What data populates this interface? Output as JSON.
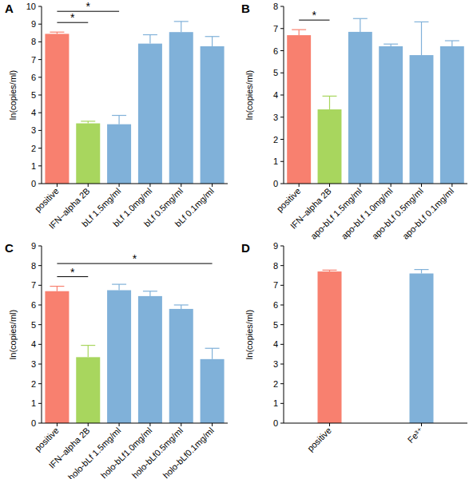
{
  "chart_data": [
    {
      "type": "bar",
      "title": "A",
      "y_label": "ln(copies/ml)",
      "categories": [
        "positive",
        "IFN–alpha 2B",
        "bLf 1.5mg/ml",
        "bLf 1.0mg/ml",
        "bLf 0.5mg/ml",
        "bLf 0.1mg/ml"
      ],
      "values": [
        8.45,
        3.4,
        3.35,
        7.9,
        8.55,
        7.75
      ],
      "errors": [
        0.1,
        0.12,
        0.5,
        0.5,
        0.6,
        0.55
      ],
      "colors": [
        "#f8806f",
        "#a8d65e",
        "#80b1d9",
        "#80b1d9",
        "#80b1d9",
        "#80b1d9"
      ],
      "ylim": [
        0,
        10
      ],
      "yticks": [
        0,
        1,
        2,
        3,
        4,
        5,
        6,
        7,
        8,
        9,
        10
      ],
      "annotations": [
        {
          "text": "*",
          "between": [
            "positive",
            "IFN–alpha 2B"
          ]
        },
        {
          "text": "*",
          "between": [
            "positive",
            "bLf 1.5mg/ml"
          ]
        }
      ]
    },
    {
      "type": "bar",
      "title": "B",
      "y_label": "ln(copies/ml)",
      "categories": [
        "positive",
        "IFN–alpha 2B",
        "apo-bLf 1.5mg/ml",
        "apo-bLf 1.0mg/ml",
        "apo-bLf 0.5mg/ml",
        "apo-bLf 0.1mg/ml"
      ],
      "values": [
        6.7,
        3.35,
        6.85,
        6.2,
        5.8,
        6.2
      ],
      "errors": [
        0.25,
        0.6,
        0.6,
        0.1,
        1.5,
        0.25
      ],
      "colors": [
        "#f8806f",
        "#a8d65e",
        "#80b1d9",
        "#80b1d9",
        "#80b1d9",
        "#80b1d9"
      ],
      "ylim": [
        0,
        8
      ],
      "yticks": [
        0,
        1,
        2,
        3,
        4,
        5,
        6,
        7,
        8
      ],
      "annotations": [
        {
          "text": "*",
          "between": [
            "positive",
            "IFN–alpha 2B"
          ]
        }
      ]
    },
    {
      "type": "bar",
      "title": "C",
      "y_label": "ln(copies/ml)",
      "categories": [
        "positive",
        "IFN–alpha 2B",
        "holo-bLf 1.5mg/ml",
        "holo-bLf1.0mg/ml",
        "holo-bLf0.5mg/ml",
        "holo-bLf0.1mg/ml"
      ],
      "values": [
        6.7,
        3.35,
        6.75,
        6.45,
        5.8,
        3.25
      ],
      "errors": [
        0.25,
        0.6,
        0.3,
        0.25,
        0.2,
        0.55
      ],
      "colors": [
        "#f8806f",
        "#a8d65e",
        "#80b1d9",
        "#80b1d9",
        "#80b1d9",
        "#80b1d9"
      ],
      "ylim": [
        0,
        9
      ],
      "yticks": [
        0,
        1,
        2,
        3,
        4,
        5,
        6,
        7,
        8,
        9
      ],
      "annotations": [
        {
          "text": "*",
          "between": [
            "positive",
            "IFN–alpha 2B"
          ]
        },
        {
          "text": "*",
          "between": [
            "positive",
            "holo-bLf0.1mg/ml"
          ]
        }
      ]
    },
    {
      "type": "bar",
      "title": "D",
      "y_label": "ln(copies/ml)",
      "categories": [
        "positive",
        "Fe³⁺"
      ],
      "values": [
        7.7,
        7.6
      ],
      "errors": [
        0.07,
        0.2
      ],
      "colors": [
        "#f8806f",
        "#80b1d9"
      ],
      "ylim": [
        0,
        9
      ],
      "yticks": [
        0,
        1,
        2,
        3,
        4,
        5,
        6,
        7,
        8,
        9
      ]
    }
  ]
}
